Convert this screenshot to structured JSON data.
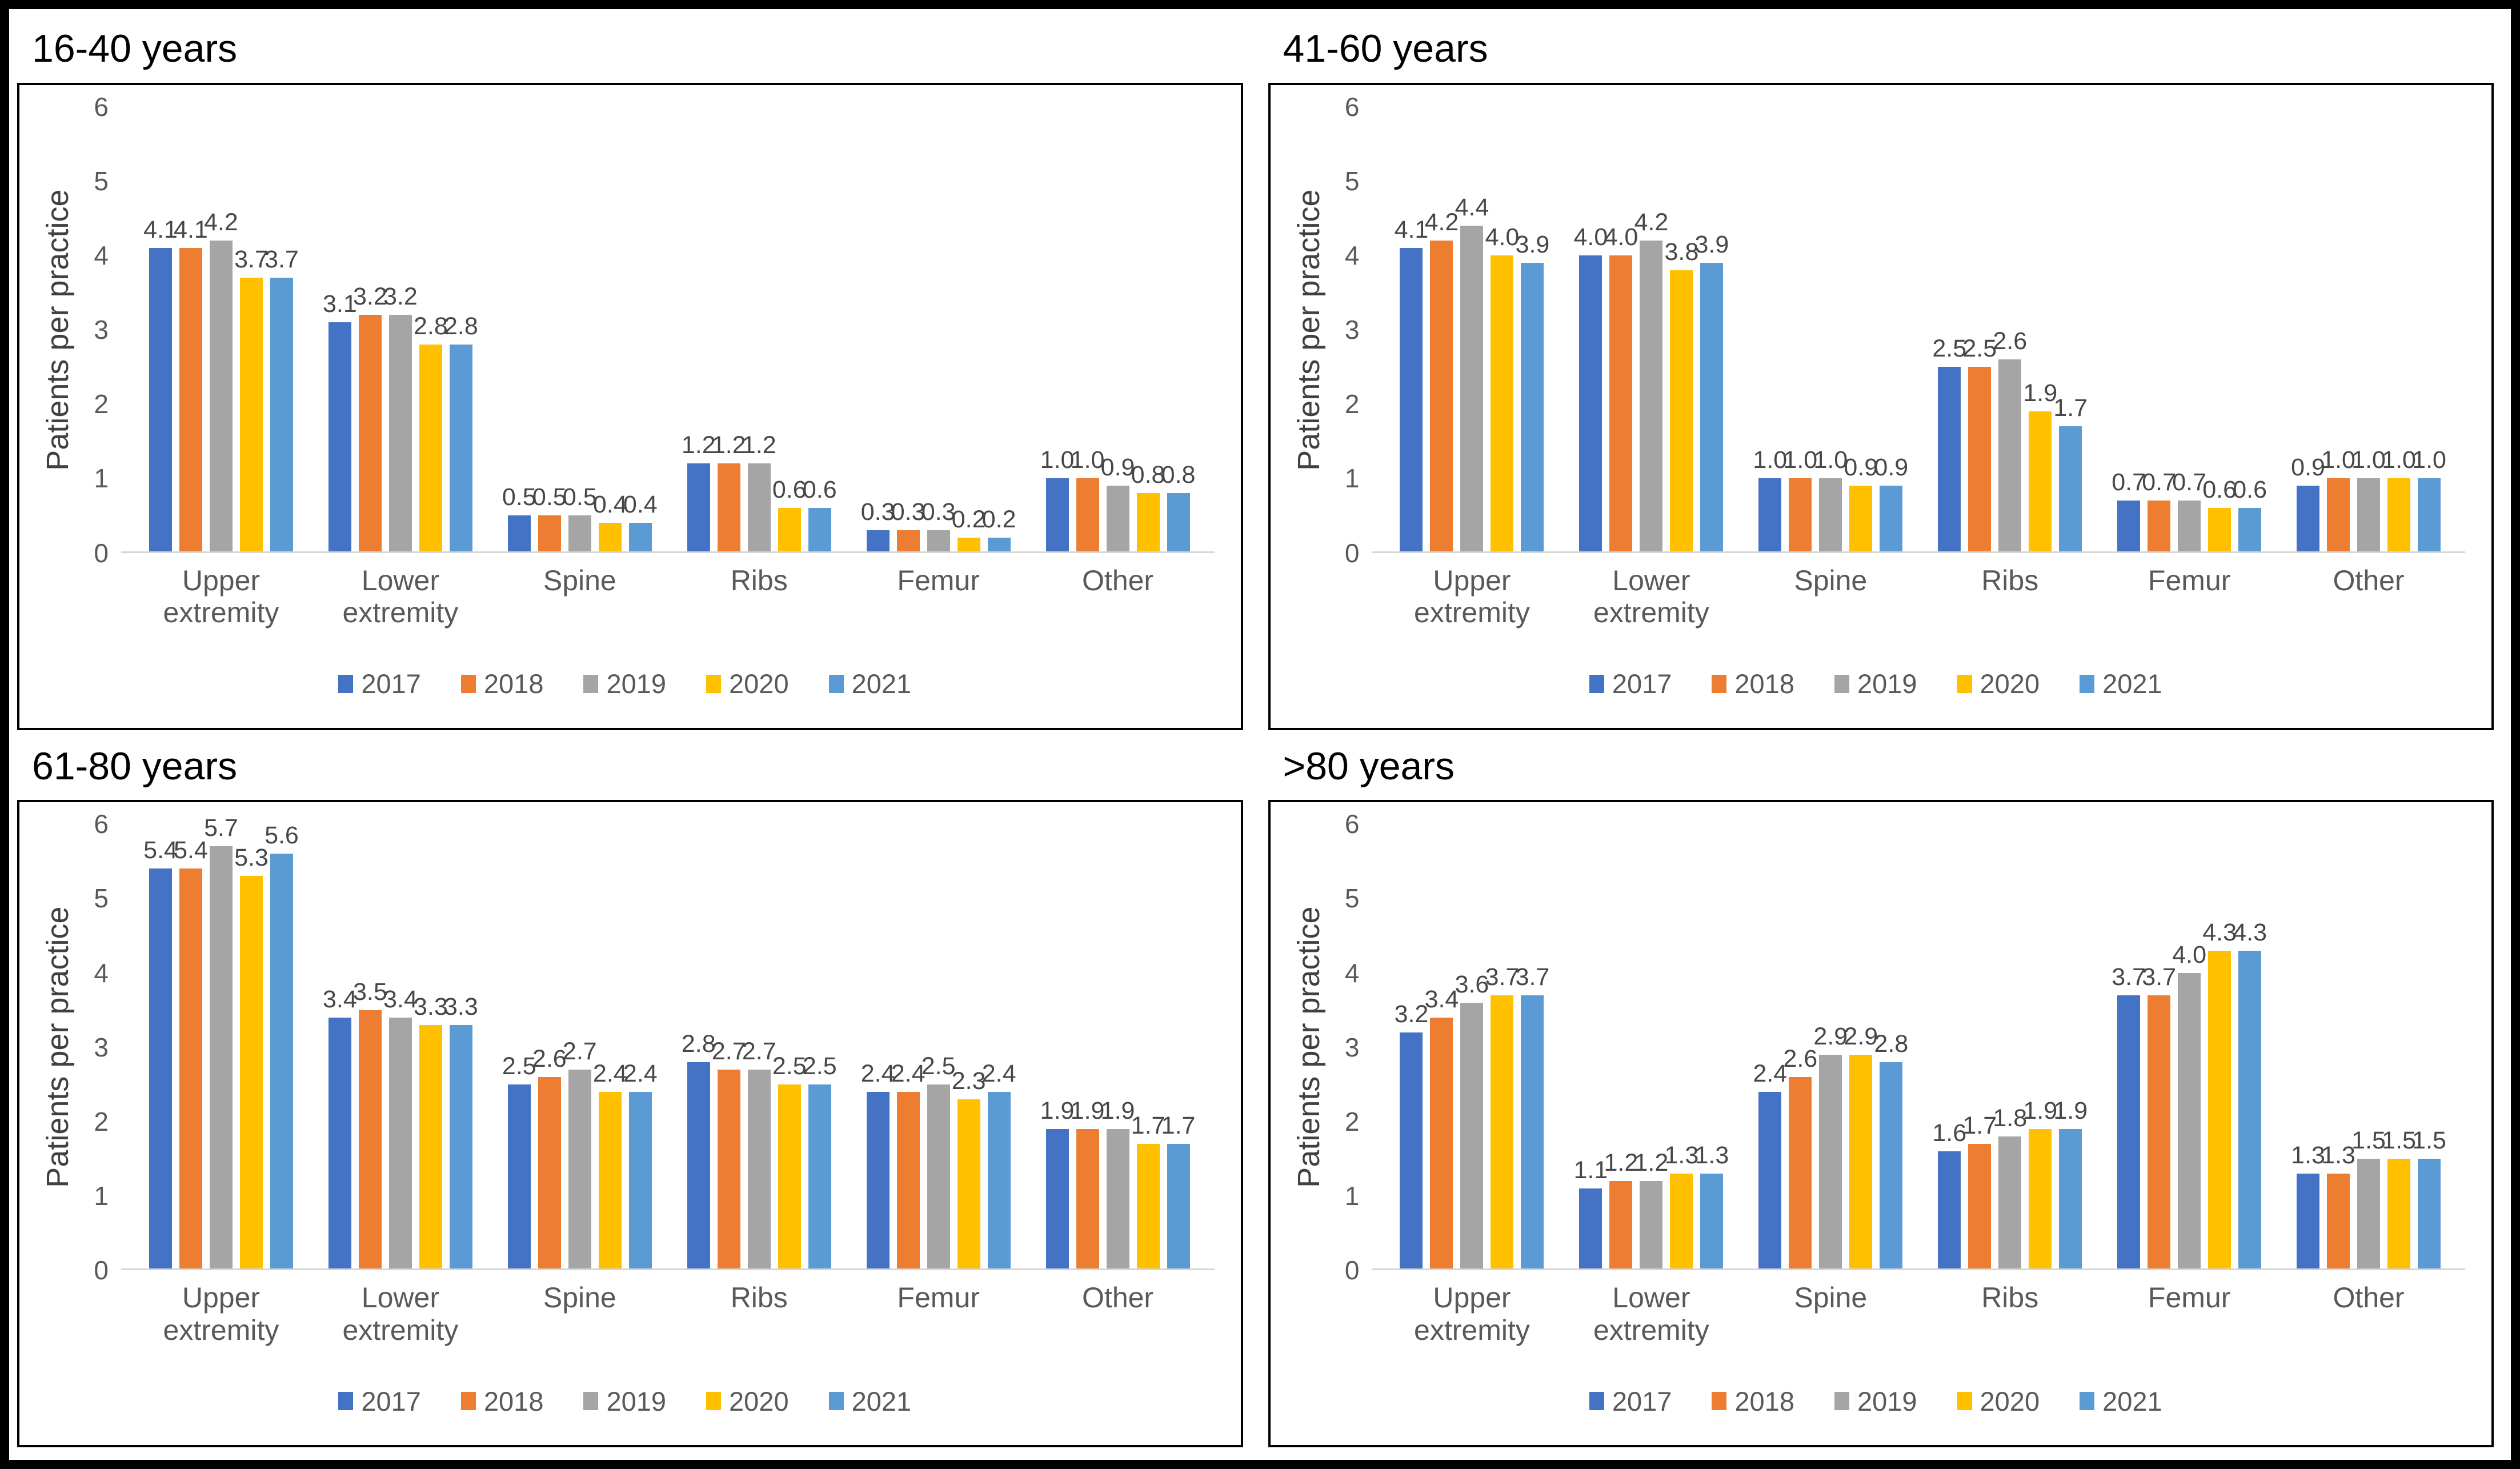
{
  "figure": {
    "ylabel": "Patients per practice",
    "ymin": 0,
    "ymax": 6,
    "yticks": [
      0,
      1,
      2,
      3,
      4,
      5,
      6
    ],
    "categories": [
      "Upper extremity",
      "Lower extremity",
      "Spine",
      "Ribs",
      "Femur",
      "Other"
    ],
    "legend_years": [
      "2017",
      "2018",
      "2019",
      "2020",
      "2021"
    ],
    "colors": {
      "2017": "#4472C4",
      "2018": "#ED7D31",
      "2019": "#A5A5A5",
      "2020": "#FFC000",
      "2021": "#5B9BD5"
    }
  },
  "chart_data": [
    {
      "type": "bar",
      "title": "16-40 years",
      "ylabel": "Patients per practice",
      "ylim": [
        0,
        6
      ],
      "grid": "off",
      "legend_position": "bottom",
      "categories": [
        "Upper extremity",
        "Lower extremity",
        "Spine",
        "Ribs",
        "Femur",
        "Other"
      ],
      "series": [
        {
          "name": "2017",
          "values": [
            4.1,
            3.1,
            0.5,
            1.2,
            0.3,
            1.0
          ]
        },
        {
          "name": "2018",
          "values": [
            4.1,
            3.2,
            0.5,
            1.2,
            0.3,
            1.0
          ]
        },
        {
          "name": "2019",
          "values": [
            4.2,
            3.2,
            0.5,
            1.2,
            0.3,
            0.9
          ]
        },
        {
          "name": "2020",
          "values": [
            3.7,
            2.8,
            0.4,
            0.6,
            0.2,
            0.8
          ]
        },
        {
          "name": "2021",
          "values": [
            3.7,
            2.8,
            0.4,
            0.6,
            0.2,
            0.8
          ]
        }
      ]
    },
    {
      "type": "bar",
      "title": "41-60 years",
      "ylabel": "Patients per practice",
      "ylim": [
        0,
        6
      ],
      "grid": "off",
      "legend_position": "bottom",
      "categories": [
        "Upper extremity",
        "Lower extremity",
        "Spine",
        "Ribs",
        "Femur",
        "Other"
      ],
      "series": [
        {
          "name": "2017",
          "values": [
            4.1,
            4.0,
            1.0,
            2.5,
            0.7,
            0.9
          ]
        },
        {
          "name": "2018",
          "values": [
            4.2,
            4.0,
            1.0,
            2.5,
            0.7,
            1.0
          ]
        },
        {
          "name": "2019",
          "values": [
            4.4,
            4.2,
            1.0,
            2.6,
            0.7,
            1.0
          ]
        },
        {
          "name": "2020",
          "values": [
            4.0,
            3.8,
            0.9,
            1.9,
            0.6,
            1.0
          ]
        },
        {
          "name": "2021",
          "values": [
            3.9,
            3.9,
            0.9,
            1.7,
            0.6,
            1.0
          ]
        }
      ]
    },
    {
      "type": "bar",
      "title": "61-80 years",
      "ylabel": "Patients per practice",
      "ylim": [
        0,
        6
      ],
      "grid": "off",
      "legend_position": "bottom",
      "categories": [
        "Upper extremity",
        "Lower extremity",
        "Spine",
        "Ribs",
        "Femur",
        "Other"
      ],
      "series": [
        {
          "name": "2017",
          "values": [
            5.4,
            3.4,
            2.5,
            2.8,
            2.4,
            1.9
          ]
        },
        {
          "name": "2018",
          "values": [
            5.4,
            3.5,
            2.6,
            2.7,
            2.4,
            1.9
          ]
        },
        {
          "name": "2019",
          "values": [
            5.7,
            3.4,
            2.7,
            2.7,
            2.5,
            1.9
          ]
        },
        {
          "name": "2020",
          "values": [
            5.3,
            3.3,
            2.4,
            2.5,
            2.3,
            1.7
          ]
        },
        {
          "name": "2021",
          "values": [
            5.6,
            3.3,
            2.4,
            2.5,
            2.4,
            1.7
          ]
        }
      ]
    },
    {
      "type": "bar",
      "title": ">80 years",
      "ylabel": "Patients per practice",
      "ylim": [
        0,
        6
      ],
      "grid": "off",
      "legend_position": "bottom",
      "categories": [
        "Upper extremity",
        "Lower extremity",
        "Spine",
        "Ribs",
        "Femur",
        "Other"
      ],
      "series": [
        {
          "name": "2017",
          "values": [
            3.2,
            1.1,
            2.4,
            1.6,
            3.7,
            1.3
          ]
        },
        {
          "name": "2018",
          "values": [
            3.4,
            1.2,
            2.6,
            1.7,
            3.7,
            1.3
          ]
        },
        {
          "name": "2019",
          "values": [
            3.6,
            1.2,
            2.9,
            1.8,
            4.0,
            1.5
          ]
        },
        {
          "name": "2020",
          "values": [
            3.7,
            1.3,
            2.9,
            1.9,
            4.3,
            1.5
          ]
        },
        {
          "name": "2021",
          "values": [
            3.7,
            1.3,
            2.8,
            1.9,
            4.3,
            1.5
          ]
        }
      ]
    }
  ]
}
